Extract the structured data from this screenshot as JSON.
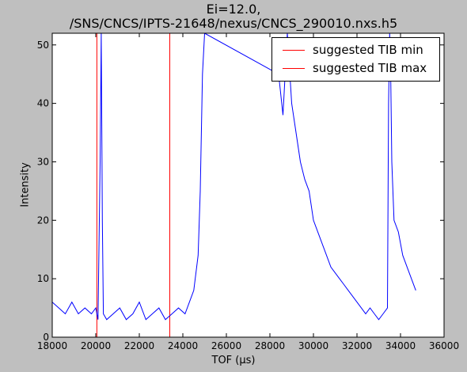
{
  "chart_data": {
    "type": "line",
    "title_lines": [
      "Ei=12.0,",
      "/SNS/CNCS/IPTS-21648/nexus/CNCS_290010.nxs.h5"
    ],
    "xlabel": "TOF (μs)",
    "ylabel": "Intensity",
    "xlim": [
      18000,
      36000
    ],
    "ylim": [
      0,
      52
    ],
    "xticks": [
      18000,
      20000,
      22000,
      24000,
      26000,
      28000,
      30000,
      32000,
      34000,
      36000
    ],
    "yticks": [
      0,
      10,
      20,
      30,
      40,
      50
    ],
    "grid": false,
    "legend_position": "top-right",
    "series": [
      {
        "color": "#0000ff",
        "x": [
          18000,
          18300,
          18600,
          18900,
          19200,
          19500,
          19800,
          20000,
          20100,
          20200,
          20250,
          20300,
          20350,
          20500,
          20800,
          21100,
          21400,
          21700,
          22000,
          22300,
          22600,
          22900,
          23200,
          23500,
          23800,
          24100,
          24300,
          24500,
          24700,
          24800,
          24900,
          25000,
          28400,
          28600,
          28800,
          29000,
          29200,
          29400,
          29600,
          29800,
          30000,
          30200,
          30400,
          30600,
          30800,
          31000,
          31200,
          31400,
          31600,
          31800,
          32000,
          32200,
          32400,
          32600,
          32800,
          33000,
          33200,
          33400,
          33450,
          33500,
          33550,
          33600,
          33700,
          33900,
          34100,
          34300,
          34500,
          34700
        ],
        "y": [
          6,
          5,
          4,
          6,
          4,
          5,
          4,
          5,
          3,
          30,
          52,
          20,
          4,
          3,
          4,
          5,
          3,
          4,
          6,
          3,
          4,
          5,
          3,
          4,
          5,
          4,
          6,
          8,
          14,
          25,
          45,
          52,
          45,
          38,
          52,
          40,
          35,
          30,
          27,
          25,
          20,
          18,
          16,
          14,
          12,
          11,
          10,
          9,
          8,
          7,
          6,
          5,
          4,
          5,
          4,
          3,
          4,
          5,
          40,
          52,
          45,
          30,
          20,
          18,
          14,
          12,
          10,
          8
        ]
      }
    ],
    "vlines": [
      {
        "name": "suggested TIB min",
        "x": 20050,
        "color": "#ff0000"
      },
      {
        "name": "suggested TIB max",
        "x": 23400,
        "color": "#ff0000"
      }
    ]
  }
}
